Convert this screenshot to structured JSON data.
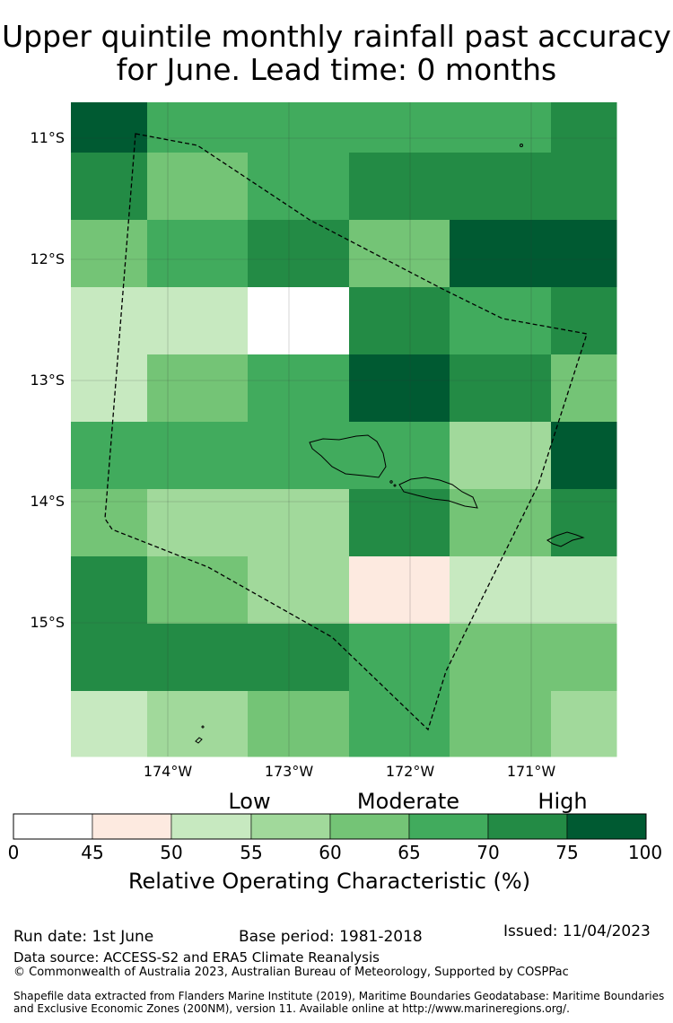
{
  "title_line1": "Upper quintile monthly rainfall past accuracy",
  "title_line2": "for June. Lead time: 0 months",
  "map": {
    "lat_ticks": [
      "11°S",
      "12°S",
      "13°S",
      "14°S",
      "15°S"
    ],
    "lon_ticks": [
      "174°W",
      "173°W",
      "172°W",
      "171°W"
    ],
    "color_scale": [
      "#ffffff",
      "#fdeae0",
      "#c7e9c0",
      "#a1d99b",
      "#74c476",
      "#41ab5d",
      "#238b45",
      "#005a32"
    ],
    "grid_rows": [
      [
        7,
        5,
        5,
        5,
        5,
        6
      ],
      [
        6,
        4,
        5,
        6,
        6,
        6
      ],
      [
        4,
        5,
        6,
        4,
        7,
        7
      ],
      [
        2,
        2,
        0,
        6,
        5,
        6
      ],
      [
        2,
        4,
        5,
        7,
        6,
        4
      ],
      [
        5,
        5,
        5,
        5,
        3,
        7
      ],
      [
        4,
        3,
        3,
        6,
        4,
        6
      ],
      [
        6,
        4,
        3,
        1,
        2,
        2
      ],
      [
        6,
        6,
        6,
        5,
        4,
        4
      ],
      [
        2,
        3,
        4,
        5,
        4,
        3
      ]
    ]
  },
  "colorbar": {
    "categories": [
      "Low",
      "Moderate",
      "High"
    ],
    "ticks": [
      "0",
      "45",
      "50",
      "55",
      "60",
      "65",
      "70",
      "75",
      "100"
    ],
    "title": "Relative Operating Characteristic (%)"
  },
  "footer": {
    "run_date": "Run date: 1st June",
    "base_period": "Base period: 1981-2018",
    "issued": "Issued: 11/04/2023",
    "data_source": "Data source: ACCESS-S2 and ERA5 Climate Reanalysis",
    "copyright": "© Commonwealth of Australia 2023, Australian Bureau of Meteorology, Supported by COSPPac",
    "shapefile_line1": "Shapefile data extracted from Flanders Marine Institute (2019), Maritime Boundaries Geodatabase: Maritime Boundaries",
    "shapefile_line2": "and Exclusive Economic Zones (200NM), version 11. Available online at http://www.marineregions.org/."
  }
}
